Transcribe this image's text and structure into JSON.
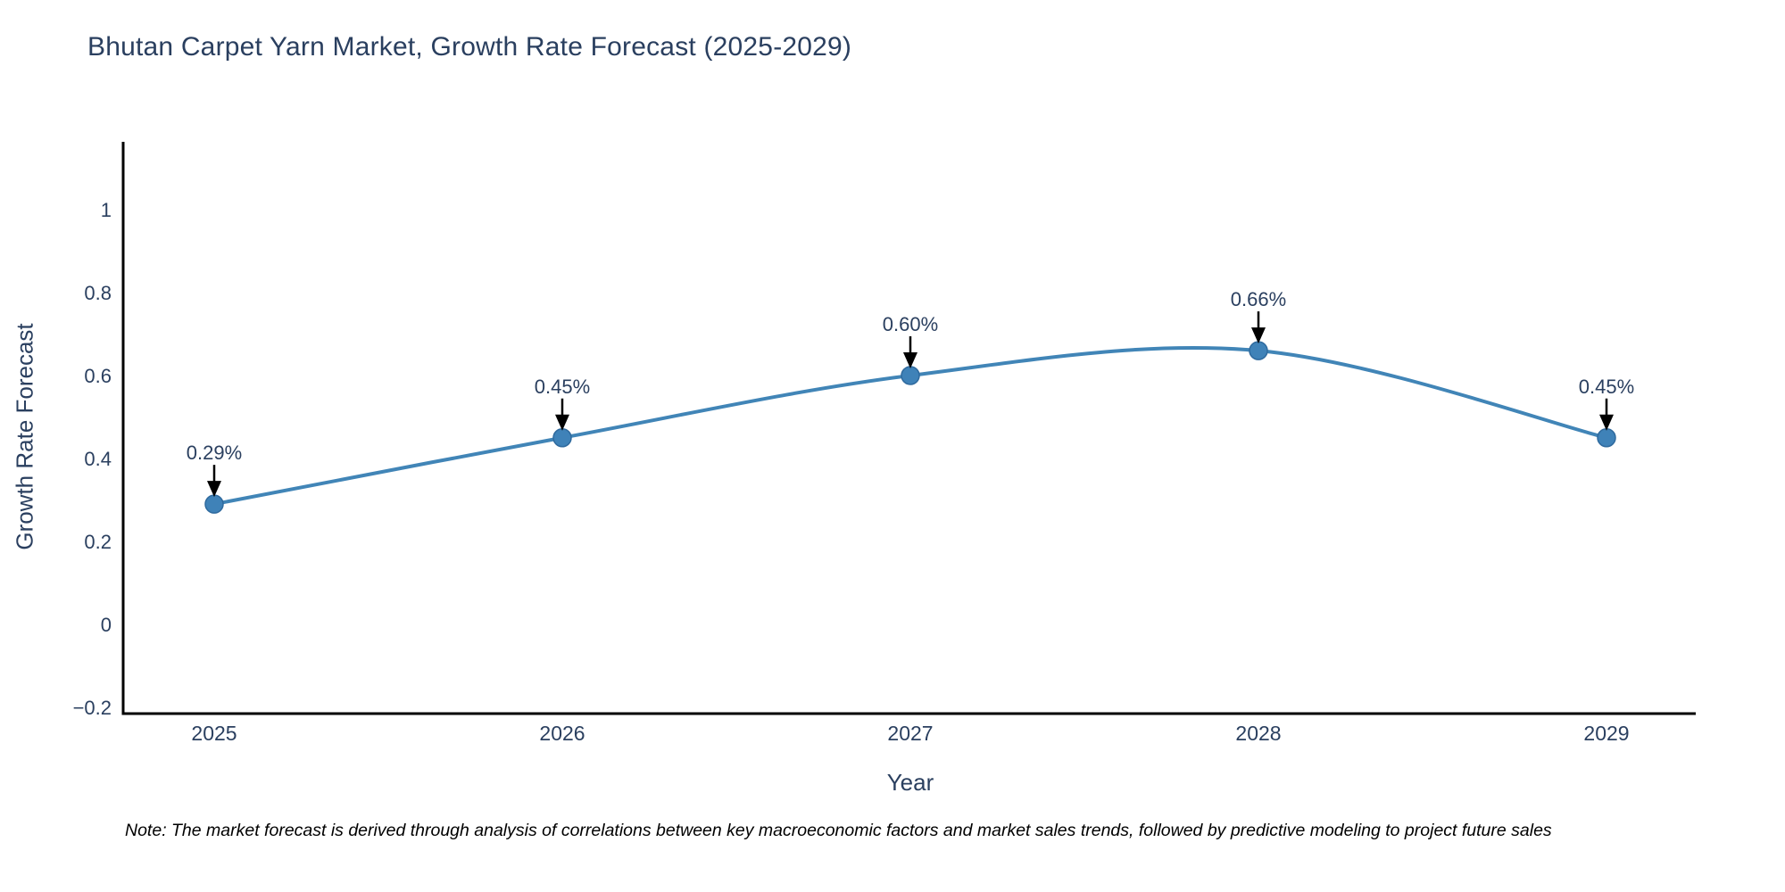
{
  "title": "Bhutan Carpet Yarn Market, Growth Rate Forecast (2025-2029)",
  "axes": {
    "x": {
      "label": "Year",
      "ticks": [
        "2025",
        "2026",
        "2027",
        "2028",
        "2029"
      ]
    },
    "y": {
      "label": "Growth Rate Forecast",
      "ticks": [
        "1",
        "0.8",
        "0.6",
        "0.4",
        "0.2",
        "0",
        "−0.2"
      ],
      "tick_values": [
        1,
        0.8,
        0.6,
        0.4,
        0.2,
        0,
        -0.2
      ]
    }
  },
  "chart_data": {
    "type": "line",
    "title": "Bhutan Carpet Yarn Market, Growth Rate Forecast (2025-2029)",
    "xlabel": "Year",
    "ylabel": "Growth Rate Forecast",
    "x": [
      2025,
      2026,
      2027,
      2028,
      2029
    ],
    "values": [
      0.29,
      0.45,
      0.6,
      0.66,
      0.45
    ],
    "point_labels": [
      "0.29%",
      "0.45%",
      "0.60%",
      "0.66%",
      "0.45%"
    ],
    "ylim": [
      -0.215,
      1.16
    ],
    "line_shape": "spline",
    "grid": false,
    "legend": false,
    "colors": {
      "line": "#4185b7",
      "marker": "#3f82b8",
      "marker_edge": "#2f6a9e",
      "arrow": "#000000",
      "axis": "#000000",
      "text": "#2a3f5f"
    }
  },
  "note": "Note: The market forecast is derived through analysis of correlations between key macroeconomic factors and market sales trends, followed by predictive modeling to project future sales"
}
